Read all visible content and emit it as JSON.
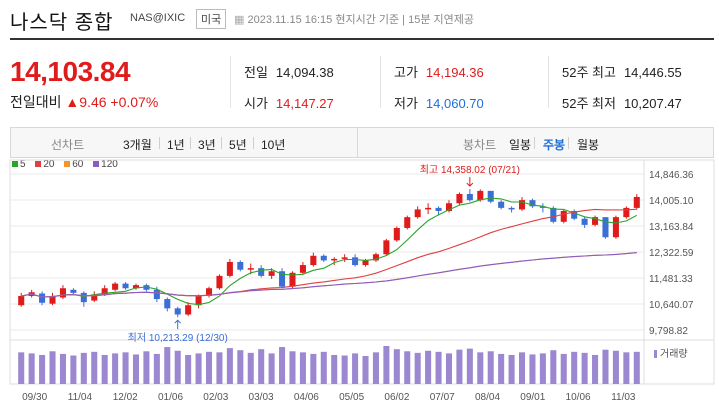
{
  "header": {
    "title": "나스닥 종합",
    "code": "NAS@IXIC",
    "market_badge": "미국",
    "datetime": "2023.11.15 16:15 현지시간 기준 | 15분 지연제공"
  },
  "quote": {
    "price": "14,103.84",
    "change_label": "전일대비",
    "change_value": "▲9.46",
    "change_pct": "+0.07%",
    "prev_close_label": "전일",
    "prev_close": "14,094.38",
    "open_label": "시가",
    "open": "14,147.27",
    "high_label": "고가",
    "high": "14,194.36",
    "low_label": "저가",
    "low": "14,060.70",
    "w52_high_label": "52주 최고",
    "w52_high": "14,446.55",
    "w52_low_label": "52주 최저",
    "w52_low": "10,207.47"
  },
  "toolbar": {
    "line_label": "선차트",
    "line_tabs": [
      "3개월",
      "1년",
      "3년",
      "5년",
      "10년"
    ],
    "candle_label": "봉차트",
    "candle_tabs": [
      "일봉",
      "주봉",
      "월봉"
    ],
    "active_candle_tab": "주봉"
  },
  "legend": [
    {
      "label": "5",
      "color": "#2aa52a"
    },
    {
      "label": "20",
      "color": "#e04040"
    },
    {
      "label": "60",
      "color": "#f0962c"
    },
    {
      "label": "120",
      "color": "#8a5cc8"
    }
  ],
  "colors": {
    "up": "#e01b1b",
    "down": "#3b6fd6",
    "volume": "#9c88d0",
    "grid": "#e8e8e8"
  },
  "chart_data": {
    "type": "candlestick",
    "y_ticks": [
      "14,846.36",
      "14,005.10",
      "13,163.84",
      "12,322.59",
      "11,481.33",
      "10,640.07",
      "9,798.82"
    ],
    "ylim": [
      9798.82,
      14846.36
    ],
    "x_ticks": [
      "09/30",
      "11/04",
      "12/02",
      "01/06",
      "02/03",
      "03/03",
      "04/06",
      "05/05",
      "06/02",
      "07/07",
      "08/04",
      "09/01",
      "10/06",
      "11/03"
    ],
    "high_annotation": "최고 14,358.02 (07/21)",
    "low_annotation": "최저 10,213.29 (12/30)",
    "volume_label": "거래량",
    "candles": [
      [
        10600,
        10900,
        10550,
        11000
      ],
      [
        10900,
        11020,
        10850,
        11100
      ],
      [
        10980,
        10680,
        10600,
        11050
      ],
      [
        10650,
        10900,
        10600,
        11000
      ],
      [
        10850,
        11150,
        10800,
        11250
      ],
      [
        11100,
        11000,
        10950,
        11150
      ],
      [
        11000,
        10700,
        10550,
        11050
      ],
      [
        10750,
        10950,
        10700,
        11050
      ],
      [
        10950,
        11150,
        10900,
        11250
      ],
      [
        11100,
        11300,
        11050,
        11350
      ],
      [
        11300,
        11150,
        11100,
        11350
      ],
      [
        11150,
        11250,
        11100,
        11300
      ],
      [
        11250,
        11100,
        11050,
        11300
      ],
      [
        11100,
        10800,
        10700,
        11200
      ],
      [
        10800,
        10500,
        10400,
        10850
      ],
      [
        10500,
        10300,
        10213,
        10550
      ],
      [
        10300,
        10600,
        10250,
        10700
      ],
      [
        10600,
        10900,
        10500,
        10950
      ],
      [
        10900,
        11150,
        10850,
        11200
      ],
      [
        11150,
        11550,
        11100,
        11600
      ],
      [
        11550,
        12000,
        11500,
        12100
      ],
      [
        12000,
        11750,
        11700,
        12050
      ],
      [
        11750,
        11800,
        11600,
        11950
      ],
      [
        11800,
        11550,
        11500,
        11900
      ],
      [
        11550,
        11700,
        11450,
        11800
      ],
      [
        11700,
        11200,
        11150,
        11800
      ],
      [
        11200,
        11650,
        11150,
        11700
      ],
      [
        11650,
        11900,
        11600,
        12000
      ],
      [
        11900,
        12200,
        11850,
        12300
      ],
      [
        12200,
        12050,
        12000,
        12250
      ],
      [
        12050,
        12100,
        11900,
        12150
      ],
      [
        12100,
        12150,
        12000,
        12250
      ],
      [
        12150,
        11900,
        11850,
        12250
      ],
      [
        11900,
        12050,
        11850,
        12100
      ],
      [
        12050,
        12250,
        12000,
        12300
      ],
      [
        12250,
        12700,
        12200,
        12750
      ],
      [
        12700,
        13100,
        12650,
        13150
      ],
      [
        13100,
        13450,
        13050,
        13500
      ],
      [
        13450,
        13700,
        13400,
        13800
      ],
      [
        13700,
        13750,
        13550,
        13900
      ],
      [
        13750,
        13650,
        13500,
        13800
      ],
      [
        13650,
        13900,
        13600,
        14000
      ],
      [
        13900,
        14200,
        13850,
        14250
      ],
      [
        14200,
        14000,
        13950,
        14358
      ],
      [
        14000,
        14300,
        13950,
        14350
      ],
      [
        14300,
        13950,
        13900,
        14300
      ],
      [
        13950,
        13750,
        13700,
        14000
      ],
      [
        13750,
        13700,
        13600,
        13800
      ],
      [
        13700,
        14000,
        13650,
        14100
      ],
      [
        14000,
        13800,
        13750,
        14050
      ],
      [
        13800,
        13750,
        13600,
        13900
      ],
      [
        13750,
        13300,
        13250,
        13800
      ],
      [
        13300,
        13650,
        13250,
        13700
      ],
      [
        13650,
        13400,
        13350,
        13700
      ],
      [
        13400,
        13200,
        13100,
        13450
      ],
      [
        13200,
        13450,
        13150,
        13500
      ],
      [
        13450,
        12800,
        12750,
        13450
      ],
      [
        12800,
        13450,
        12750,
        13500
      ],
      [
        13450,
        13750,
        13400,
        13800
      ],
      [
        13750,
        14103,
        13700,
        14194
      ]
    ],
    "volumes": [
      60,
      58,
      55,
      62,
      57,
      54,
      59,
      61,
      55,
      58,
      60,
      56,
      62,
      57,
      70,
      63,
      55,
      58,
      61,
      60,
      68,
      64,
      59,
      66,
      58,
      70,
      62,
      60,
      57,
      61,
      55,
      54,
      58,
      53,
      60,
      72,
      66,
      62,
      59,
      63,
      61,
      58,
      65,
      67,
      60,
      62,
      57,
      55,
      60,
      56,
      58,
      64,
      57,
      61,
      59,
      55,
      65,
      63,
      60,
      61
    ]
  }
}
